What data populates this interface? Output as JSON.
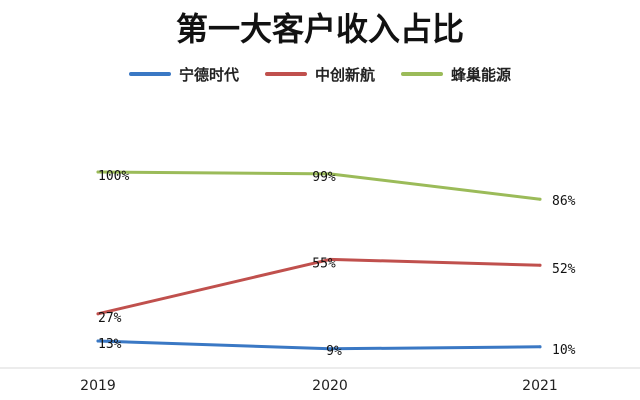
{
  "chart_data": {
    "type": "line",
    "title": "第一大客户收入占比",
    "categories": [
      "2019",
      "2020",
      "2021"
    ],
    "series": [
      {
        "name": "宁德时代",
        "color": "#3a78c4",
        "values": [
          13,
          9,
          10
        ],
        "labels": [
          "13%",
          "9%",
          "10%"
        ]
      },
      {
        "name": "中创新航",
        "color": "#c0504d",
        "values": [
          27,
          55,
          52
        ],
        "labels": [
          "27%",
          "55%",
          "52%"
        ]
      },
      {
        "name": "蜂巢能源",
        "color": "#9bbb59",
        "values": [
          100,
          99,
          86
        ],
        "labels": [
          "100%",
          "99%",
          "86%"
        ]
      }
    ],
    "legend_position": "top",
    "grid": false
  }
}
